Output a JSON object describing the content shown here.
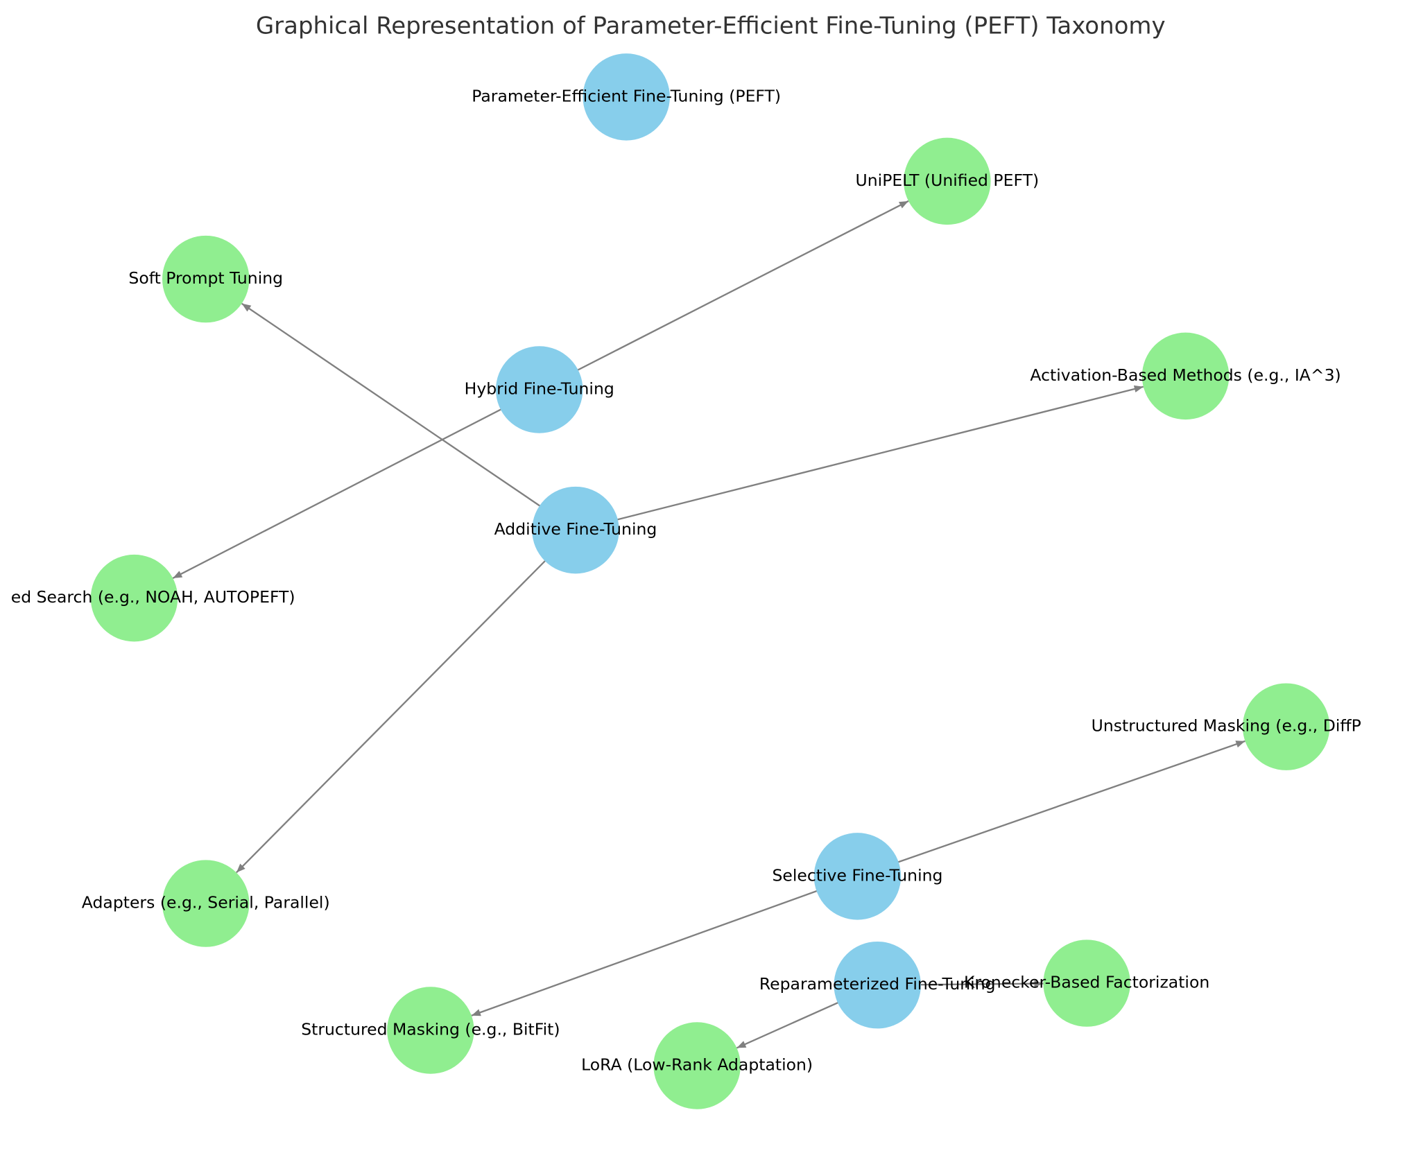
{
  "title": "Graphical Representation of Parameter-Efficient Fine-Tuning (PEFT) Taxonomy",
  "nodes": [
    {
      "label": "Parameter-Efficient Fine-Tuning (PEFT)"
    },
    {
      "label": "UniPELT (Unified PEFT)"
    },
    {
      "label": "Soft Prompt Tuning"
    },
    {
      "label": "Hybrid Fine-Tuning"
    },
    {
      "label": "Activation-Based Methods (e.g., IA^3)"
    },
    {
      "label": "Additive Fine-Tuning"
    },
    {
      "label": "ed Search (e.g., NOAH, AUTOPEFT)"
    },
    {
      "label": "Unstructured Masking (e.g., DiffP"
    },
    {
      "label": "Adapters (e.g., Serial, Parallel)"
    },
    {
      "label": "Selective Fine-Tuning"
    },
    {
      "label": "Reparameterized Fine-Tuning"
    },
    {
      "label": "Kronecker-Based Factorization"
    },
    {
      "label": "Structured Masking (e.g., BitFit)"
    },
    {
      "label": "LoRA (Low-Rank Adaptation)"
    }
  ]
}
